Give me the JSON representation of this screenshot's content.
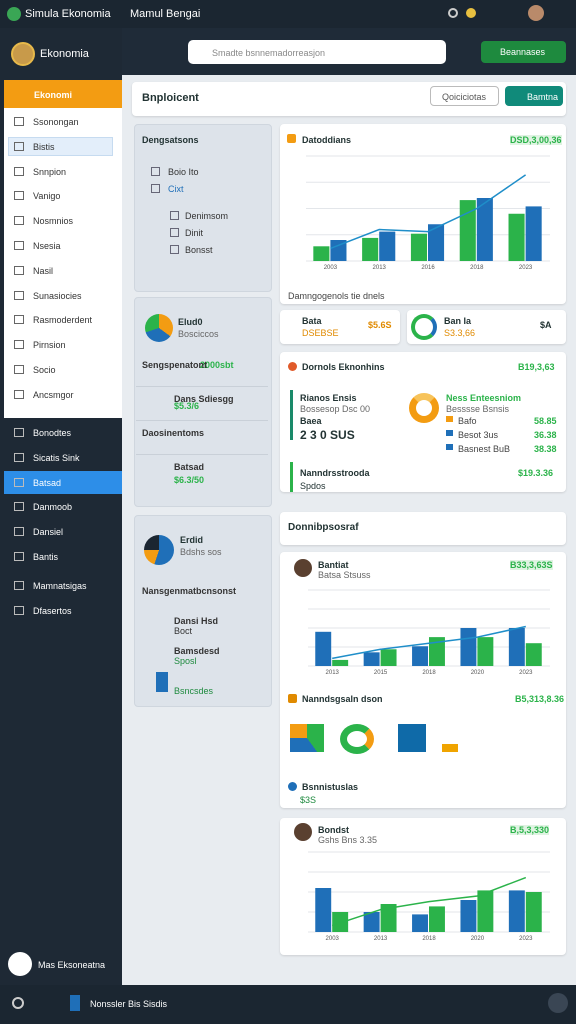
{
  "topbar": {
    "app_name": "Simula Ekonomia",
    "title": "Mamul Bengai"
  },
  "sidebar": {
    "profile": "Ekonomia",
    "section": "Ekonomi",
    "menu": [
      {
        "label": "Ssonongan"
      },
      {
        "label": "Bistis",
        "active": true
      },
      {
        "label": "Snnpion"
      },
      {
        "label": "Vanigo"
      },
      {
        "label": "Nosmnios"
      },
      {
        "label": "Nsesia"
      },
      {
        "label": "Nasil"
      },
      {
        "label": "Sunasiocies"
      },
      {
        "label": "Rasmoderdent"
      },
      {
        "label": "Pirnsion"
      },
      {
        "label": "Socio"
      },
      {
        "label": "Ancsmgor"
      }
    ],
    "dark_menu": [
      {
        "label": "Bonodtes"
      },
      {
        "label": "Sicatis Sink"
      },
      {
        "label": "Batsad",
        "active": true
      },
      {
        "label": "Danmoob"
      },
      {
        "label": "Dansiel"
      },
      {
        "label": "Bantis"
      },
      {
        "label": "Mamnatsigas"
      },
      {
        "label": "Dfasertos"
      }
    ],
    "footer": "Mas Eksoneatna"
  },
  "header": {
    "search_placeholder": "Smadte bsnnemadorreasjon",
    "button": "Beannases"
  },
  "page": {
    "title": "Bnploicent",
    "buttons": [
      "Qoiciciotas",
      "Bamtna"
    ]
  },
  "left_cards": [
    {
      "title": "Dengsatsons",
      "items": [
        "Boio Ito",
        "Cixt",
        "Denimsom",
        "Dinit",
        "Bonsst"
      ]
    },
    {
      "title": "Elud0",
      "subtitle": "Bosciccos",
      "rows": [
        "Sengspenatont",
        "Dans Sdiesgg",
        "Daosinentoms",
        "Batsad"
      ],
      "highlight": "2000sbt",
      "values": [
        "$5.3/6",
        "$6.3/50"
      ]
    },
    {
      "title": "Erdid",
      "subtitle": "Bdshs sos",
      "rows": [
        "Nansgenmatbcnsonst",
        "Dansi Hsd",
        "Bamsdesd"
      ],
      "values": [
        "Boct",
        "Sposl",
        "Bsncsdes"
      ]
    }
  ],
  "stats": [
    {
      "label": "Bata",
      "value": "$5.6S",
      "sub": "DSEBSE"
    },
    {
      "label": "Ban Ia",
      "value": "$A",
      "sub": "S3.3,66"
    }
  ],
  "detail": {
    "title": "Dornols Eknonhins",
    "value": "B19,3,63",
    "left_title": "Rianos Ensis",
    "left_sub": "Bossesop Dsc 00",
    "left_lines": [
      "Baea",
      "2 3 0 SUS"
    ],
    "right_title": "Ness Enteesniom",
    "right_sub": "Besssse Bsnsis",
    "rows": [
      {
        "label": "Bafo",
        "value": "58.85"
      },
      {
        "label": "Besot 3us",
        "value": "36.38"
      },
      {
        "label": "Basnest BuB",
        "value": "38.38"
      }
    ],
    "foot_title": "Nanndrsstrooda",
    "foot_value": "$19.3.36",
    "foot_sub": "Spdos"
  },
  "section_title": "Donnibpsosraf",
  "chart_cards": [
    {
      "type": "bar",
      "title": "Datoddians",
      "value": "DSD,3,00,36",
      "categories": [
        "2003",
        "2013",
        "2016",
        "2018",
        "2023"
      ],
      "series": [
        {
          "color": "#2bb34a",
          "values": [
            14,
            22,
            26,
            58,
            45
          ]
        },
        {
          "color": "#1f6fb8",
          "values": [
            20,
            28,
            35,
            60,
            52
          ]
        }
      ],
      "line": {
        "color": "#1f8ec9",
        "values": [
          12,
          30,
          28,
          50,
          82
        ]
      },
      "ylim": [
        0,
        100
      ],
      "footer": "Damngogenols tie dnels"
    },
    {
      "type": "bar",
      "title": "Bantiat",
      "subtitle": "Batsa Stsuss",
      "value": "B33,3,63S",
      "categories": [
        "2013",
        "2015",
        "2018",
        "2020",
        "2023"
      ],
      "series": [
        {
          "color": "#1f6fb8",
          "values": [
            45,
            18,
            26,
            50,
            50
          ]
        },
        {
          "color": "#2bb34a",
          "values": [
            8,
            22,
            38,
            38,
            30
          ]
        }
      ],
      "line": {
        "color": "#1f8ec9",
        "values": [
          10,
          22,
          30,
          38,
          52
        ]
      },
      "ylim": [
        0,
        100
      ],
      "extra_title": "Nanndsgsaln dson",
      "extra_value": "B5,313,8.36",
      "extra_sub": "Bsnnistuslas",
      "extra_value2": "$3S"
    },
    {
      "type": "bar",
      "title": "Bondst",
      "subtitle": "Gshs Bns 3.35",
      "value": "B,5,3,330",
      "categories": [
        "2003",
        "2013",
        "2018",
        "2020",
        "2023"
      ],
      "series": [
        {
          "color": "#1f6fb8",
          "values": [
            55,
            25,
            22,
            40,
            52
          ]
        },
        {
          "color": "#2bb34a",
          "values": [
            25,
            35,
            32,
            52,
            50
          ]
        }
      ],
      "line": {
        "color": "#2bb34a",
        "values": [
          8,
          28,
          38,
          45,
          68
        ]
      },
      "ylim": [
        0,
        100
      ]
    }
  ],
  "bottombar": {
    "label": "Nonssler Bis Sisdis"
  }
}
